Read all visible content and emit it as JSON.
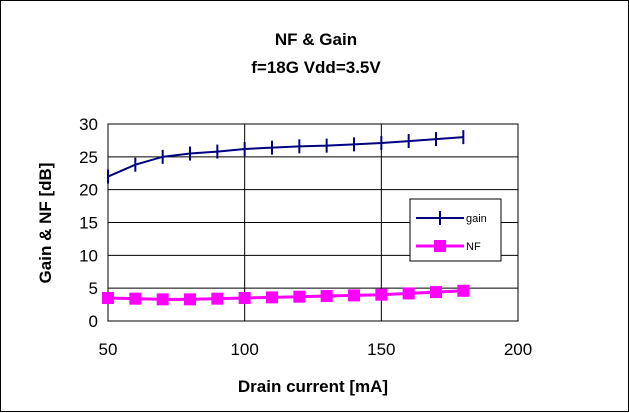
{
  "chart_data": {
    "type": "line",
    "title": "NF & Gain",
    "subtitle": "f=18G Vdd=3.5V",
    "xlabel": "Drain current [mA]",
    "ylabel": "Gain & NF [dB]",
    "xlim": [
      50,
      200
    ],
    "ylim": [
      0,
      30
    ],
    "xticks": [
      50,
      100,
      150,
      200
    ],
    "yticks": [
      0,
      5,
      10,
      15,
      20,
      25,
      30
    ],
    "grid": true,
    "legend_position": "right",
    "series": [
      {
        "name": "gain",
        "color": "#000080",
        "marker": "plus",
        "x": [
          50,
          60,
          70,
          80,
          90,
          100,
          110,
          120,
          130,
          140,
          150,
          160,
          170,
          180
        ],
        "y": [
          22,
          23.8,
          25,
          25.5,
          25.8,
          26.2,
          26.4,
          26.6,
          26.7,
          26.9,
          27.1,
          27.4,
          27.7,
          28
        ]
      },
      {
        "name": "NF",
        "color": "#ff00ff",
        "marker": "square",
        "x": [
          50,
          60,
          70,
          80,
          90,
          100,
          110,
          120,
          130,
          140,
          150,
          160,
          170,
          180
        ],
        "y": [
          3.5,
          3.4,
          3.3,
          3.3,
          3.4,
          3.5,
          3.6,
          3.7,
          3.8,
          3.9,
          4.0,
          4.2,
          4.4,
          4.6
        ]
      }
    ]
  }
}
